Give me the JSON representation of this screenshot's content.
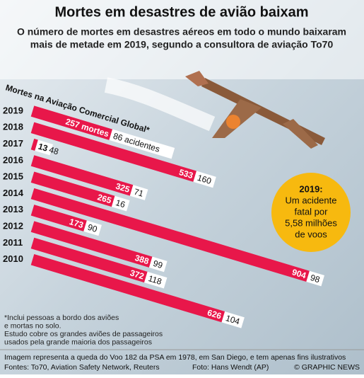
{
  "chart_data": {
    "type": "bar",
    "title": "Mortes em desastres de avião baixam",
    "subtitle": [
      "O número de mortes em desastres aéreos em todo o mundo baixaram",
      "mais de metade em 2019, segundo a consultora de aviação To70"
    ],
    "axis_title": "Mortes na Aviação Comercial Global*",
    "categories": [
      "2019",
      "2018",
      "2017",
      "2016",
      "2015",
      "2014",
      "2013",
      "2012",
      "2011",
      "2010"
    ],
    "series": [
      {
        "color": "#e8174a",
        "values": [
          257,
          533,
          13,
          325,
          265,
          904,
          173,
          388,
          372,
          626
        ],
        "value_labels": [
          "257 mortes",
          "533",
          "13",
          "325",
          "265",
          "904",
          "173",
          "388",
          "372",
          "626"
        ]
      },
      {
        "color": "#ffffff",
        "values": [
          86,
          160,
          48,
          71,
          16,
          98,
          90,
          99,
          118,
          104
        ],
        "value_labels": [
          "86 acidentes",
          "160",
          "48",
          "71",
          "16",
          "98",
          "90",
          "99",
          "118",
          "104"
        ]
      }
    ],
    "annotation": [
      "2019:",
      "Um acidente",
      "fatal por",
      "5,58 milhões",
      "de voos"
    ],
    "notes": [
      "*Inclui pessoas a bordo dos aviões",
      "e mortas no solo.",
      "Estudo cobre os grandes aviões de passageiros",
      "usados pela grande maioria dos passageiros"
    ],
    "footer": [
      "Imagem representa a queda do Voo 182 da PSA em 1978, em San Diego, e tem apenas fins ilustrativos",
      "Fontes: To70, Aviation Safety Network, Reuters",
      "Foto: Hans Wendt (AP)",
      "© GRAPHIC NEWS"
    ]
  }
}
